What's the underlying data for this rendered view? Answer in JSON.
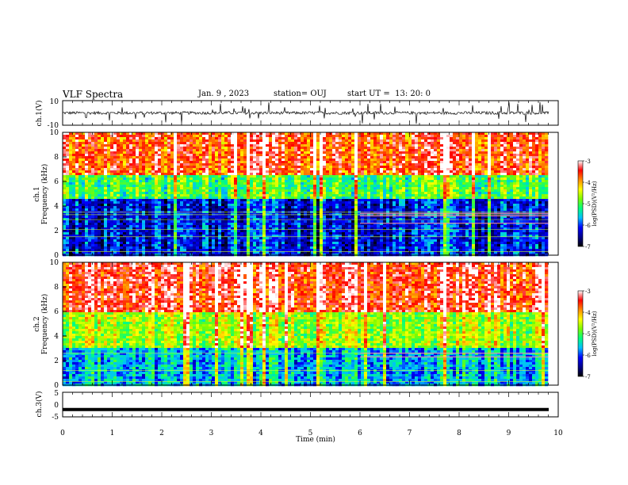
{
  "header": {
    "title": "VLF Spectra",
    "date": "Jan. 9 , 2023",
    "station": "station= OUJ",
    "start_ut": "start UT =  13: 20: 0"
  },
  "colors": {
    "spectrum_stops": [
      "#000000",
      "#00008b",
      "#0000ff",
      "#00bfff",
      "#00ff7f",
      "#7cfc00",
      "#ffff00",
      "#ff8c00",
      "#ff0000",
      "#ffffff"
    ]
  },
  "chart_data": [
    {
      "type": "line",
      "panel": "ch1-waveform",
      "ylabel": "ch.1(V)",
      "ylim": [
        -10,
        10
      ],
      "yticks": [
        "10",
        "-10"
      ],
      "xlim": [
        0,
        10
      ],
      "baseline": 0,
      "description_of_trace": "noisy black trace near 0 V"
    },
    {
      "type": "heatmap",
      "panel": "ch1-spectrogram",
      "ylabel_line1": "ch.1",
      "ylabel_line2": "Frequency (kHz)",
      "ylim": [
        0,
        10
      ],
      "yticks": [
        "0",
        "2",
        "4",
        "6",
        "8",
        "10"
      ],
      "xlim": [
        0,
        10
      ],
      "xlim_data": [
        0,
        9.8
      ],
      "colorbar": {
        "label": "log(PSD)(V²/Hz)",
        "ticks": [
          "-3",
          "-4",
          "-5",
          "-6",
          "-7"
        ],
        "range": [
          -7,
          -3
        ]
      },
      "bands": [
        {
          "f_from": 0,
          "f_to": 4.5,
          "level": -6.2
        },
        {
          "f_from": 4.5,
          "f_to": 6.5,
          "level": -5.0
        },
        {
          "f_from": 6.5,
          "f_to": 10,
          "level": -3.6
        }
      ],
      "lines_khz": [
        0.3,
        1.5,
        2.1,
        2.9,
        3.3,
        3.5
      ],
      "lines_after_6min_khz": [
        2.6,
        3.2,
        3.4
      ]
    },
    {
      "type": "heatmap",
      "panel": "ch2-spectrogram",
      "ylabel_line1": "ch.2",
      "ylabel_line2": "Frequency (kHz)",
      "ylim": [
        0,
        10
      ],
      "yticks": [
        "0",
        "2",
        "4",
        "6",
        "8",
        "10"
      ],
      "xlim": [
        0,
        10
      ],
      "xlim_data": [
        0,
        9.8
      ],
      "colorbar": {
        "label": "log(PSD)(V²/Hz)",
        "ticks": [
          "-3",
          "-4",
          "-5",
          "-6",
          "-7"
        ],
        "range": [
          -7,
          -3
        ]
      },
      "bands": [
        {
          "f_from": 0,
          "f_to": 3.0,
          "level": -5.6
        },
        {
          "f_from": 3.0,
          "f_to": 6.0,
          "level": -4.6
        },
        {
          "f_from": 6.0,
          "f_to": 10,
          "level": -3.4
        }
      ],
      "lines_khz": [
        0.3,
        1.2,
        2.6
      ],
      "lines_after_6min_khz": [
        2.3,
        2.6
      ]
    },
    {
      "type": "line",
      "panel": "ch3-waveform",
      "ylabel": "ch.3(V)",
      "ylim": [
        -5,
        5
      ],
      "yticks": [
        "5",
        "0",
        "-5"
      ],
      "xlim": [
        0,
        10
      ],
      "baseline": -2,
      "xlabel": "Time (min)",
      "xticks": [
        "0",
        "1",
        "2",
        "3",
        "4",
        "5",
        "6",
        "7",
        "8",
        "9",
        "10"
      ]
    }
  ]
}
